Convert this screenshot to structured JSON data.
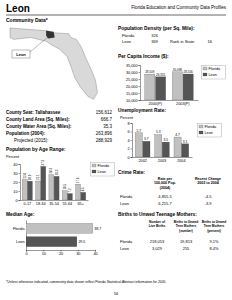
{
  "header": {
    "county": "Leon",
    "publication": "Florida Education and Community Data Profiles",
    "section": "Community Data*"
  },
  "population_density": {
    "title": "Population Density (per Sq. Mile):",
    "rows": [
      [
        "Florida",
        "326"
      ],
      [
        "Leon",
        "369"
      ]
    ],
    "rank_label": "Rank in State:",
    "rank": "16"
  },
  "map": {
    "label": "Leon"
  },
  "county_facts": [
    [
      "County Seat: Tallahassee",
      "156,612"
    ],
    [
      "County Land Area (Sq. Miles):",
      "666.7"
    ],
    [
      "County Water Area (Sq. Miles):",
      "35.3"
    ],
    [
      "Population (2004):",
      "263,896"
    ],
    [
      "Projected (2015):",
      "288,929"
    ]
  ],
  "crime_rate": {
    "title": "Crime Rate:",
    "headers": [
      [
        "Rate per",
        "100,000 Pop.",
        "(2004)"
      ],
      [
        "Recent Change",
        "2003 to 2004"
      ]
    ],
    "rows": [
      [
        "Florida",
        "4,855.5",
        "-4.5"
      ],
      [
        "Leon",
        "6,215.7",
        "-3.9"
      ]
    ]
  },
  "births": {
    "title": "Births to Unwed Teenage Mothers:",
    "headers": [
      [
        "Number of",
        "Live Births"
      ],
      [
        "Births to Unwed",
        "Teen Mothers",
        "(number)"
      ],
      [
        "Births to Unwed",
        "Teen Mothers",
        "(percent)"
      ]
    ],
    "rows": [
      [
        "Florida",
        "218,053",
        "19,813",
        "9.1%"
      ],
      [
        "Leon",
        "3,029",
        "255",
        "8.4%"
      ]
    ]
  },
  "footnote": "*Unless otherwise indicated, community data shown reflect Florida Statistical Abstract information for 2005.",
  "page": "56",
  "chart_data": [
    {
      "type": "bar",
      "title": "Per Capita Income ($):",
      "categories": [
        "2000(P)",
        "2003(P)"
      ],
      "series": [
        {
          "name": "Florida",
          "color": "#c0c0c0",
          "values": [
            28509,
            30098
          ],
          "value_labels": [
            "28,509",
            "30,098"
          ]
        },
        {
          "name": "Leon",
          "color": "#555555",
          "values": [
            26555,
            28556
          ],
          "value_labels": [
            "26,555",
            "28,556"
          ]
        }
      ],
      "ylim": [
        10000,
        35000
      ],
      "yticks": [
        {
          "value": 10000,
          "label": "10,000"
        },
        {
          "value": 15000,
          "label": "15,000"
        },
        {
          "value": 20000,
          "label": "20,000"
        },
        {
          "value": 25000,
          "label": "25,000"
        },
        {
          "value": 30000,
          "label": "30,000"
        },
        {
          "value": 35000,
          "label": "35,000"
        }
      ],
      "data_labels": true,
      "legend": "right"
    },
    {
      "type": "bar",
      "title": "Unemployment Rate:",
      "ylabel": "Percent",
      "categories": [
        "2002",
        "2003",
        "2004"
      ],
      "series": [
        {
          "name": "Florida",
          "color": "#c0c0c0",
          "values": [
            5.7,
            5.3,
            4.7
          ]
        },
        {
          "name": "Leon",
          "color": "#555555",
          "values": [
            3.7,
            3.5,
            3.1
          ]
        }
      ],
      "ylim": [
        0,
        8
      ],
      "yticks": [
        0,
        2,
        4,
        6,
        8
      ],
      "data_labels": true,
      "legend": "right"
    },
    {
      "type": "bar",
      "title": "Population by Age Range:",
      "ylabel": "Percent",
      "categories": [
        "0-17",
        "18-34",
        "35-54",
        "55-64",
        "65+"
      ],
      "series": [
        {
          "name": "Florida",
          "color": "#c0c0c0",
          "values": [
            22.8,
            21.1,
            28.3,
            10.5,
            17.6
          ]
        },
        {
          "name": "Leon",
          "color": "#555555",
          "values": [
            20.9,
            37.3,
            26.3,
            7.2,
            8.5
          ]
        }
      ],
      "ylim": [
        0,
        40
      ],
      "yticks": [
        0,
        10,
        20,
        30,
        40
      ],
      "data_labels": true,
      "legend": "right"
    },
    {
      "type": "bar",
      "orientation": "horizontal",
      "title": "Median Age:",
      "categories": [
        "Florida",
        "Leon"
      ],
      "values": [
        38.7,
        29.5
      ],
      "colors": [
        "#c0c0c0",
        "#555555"
      ],
      "xlim": [
        0,
        40
      ],
      "xticks": [
        0,
        10,
        20,
        30,
        40
      ],
      "data_labels": true
    }
  ]
}
